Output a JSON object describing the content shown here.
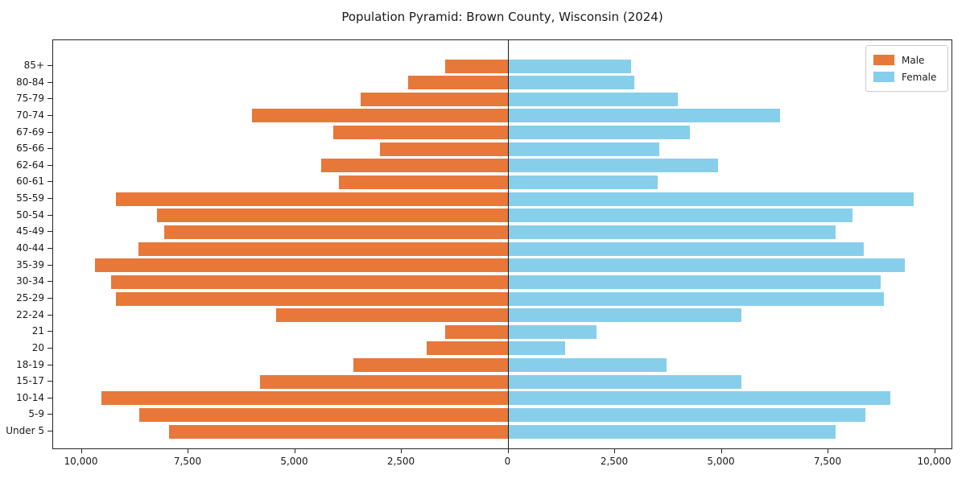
{
  "chart_data": {
    "type": "bar",
    "subtype": "population-pyramid",
    "title": "Population Pyramid: Brown County, Wisconsin (2024)",
    "categories": [
      "85+",
      "80-84",
      "75-79",
      "70-74",
      "67-69",
      "65-66",
      "62-64",
      "60-61",
      "55-59",
      "50-54",
      "45-49",
      "40-44",
      "35-39",
      "30-34",
      "25-29",
      "22-24",
      "21",
      "20",
      "18-19",
      "15-17",
      "10-14",
      "5-9",
      "Under 5"
    ],
    "series": [
      {
        "name": "Male",
        "side": "left",
        "color": "#e8773a",
        "values": [
          1480,
          2350,
          3460,
          6010,
          4100,
          3010,
          4390,
          3970,
          9200,
          8240,
          8070,
          8670,
          9690,
          9310,
          9200,
          5440,
          1480,
          1920,
          3630,
          5820,
          9540,
          8650,
          7950
        ]
      },
      {
        "name": "Female",
        "side": "right",
        "color": "#87ceeb",
        "values": [
          2880,
          2950,
          3970,
          6370,
          4260,
          3540,
          4920,
          3500,
          9500,
          8070,
          7670,
          8330,
          9290,
          8730,
          8800,
          5460,
          2070,
          1330,
          3700,
          5460,
          8950,
          8370,
          7670
        ]
      }
    ],
    "x_ticks": {
      "values": [
        -10000,
        -7500,
        -5000,
        -2500,
        0,
        2500,
        5000,
        7500,
        10000
      ],
      "labels": [
        "10,000",
        "7,500",
        "5,000",
        "2,500",
        "0",
        "2,500",
        "5,000",
        "7,500",
        "10,000"
      ]
    },
    "xlim": [
      -10660,
      10450
    ],
    "ylabel": "",
    "xlabel": "",
    "grid": false,
    "legend_position": "upper right",
    "axis_color": "#1a1a1a"
  }
}
